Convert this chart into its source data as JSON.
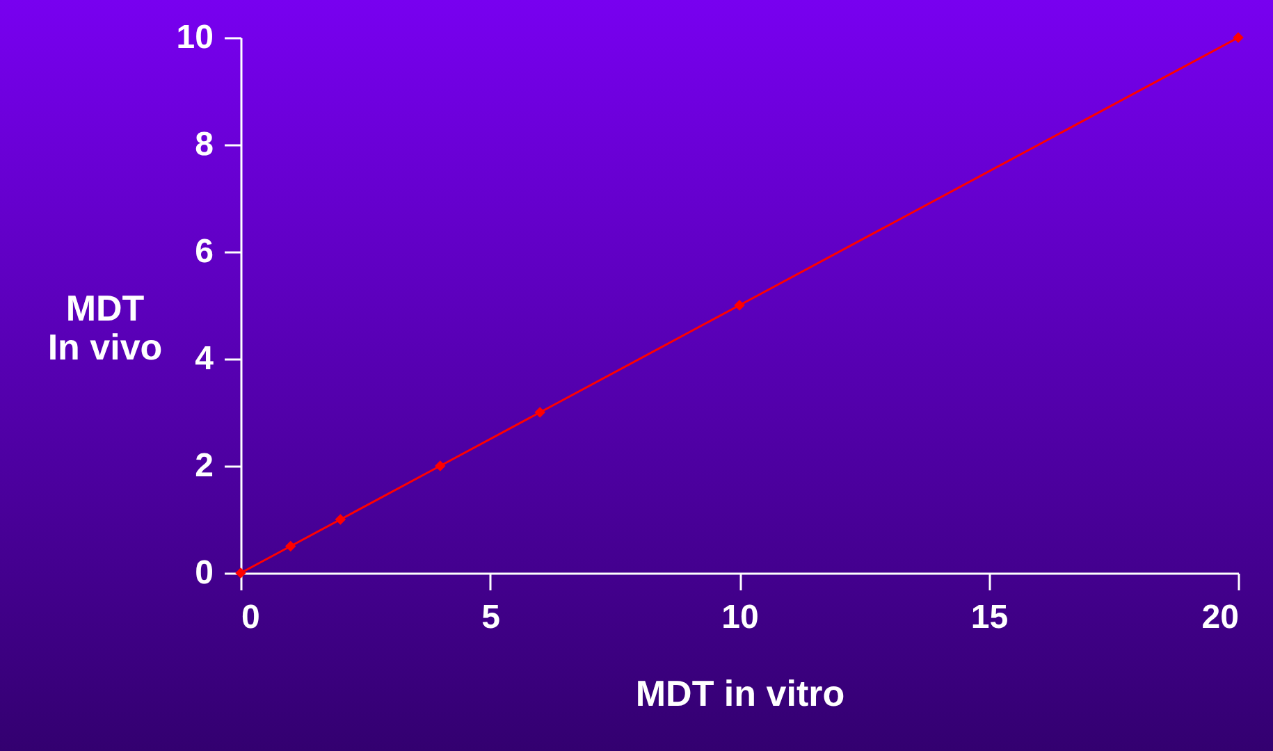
{
  "chart_data": {
    "type": "line",
    "xlabel": "MDT in vitro",
    "ylabel": "MDT\nIn vivo",
    "x": [
      0,
      1,
      2,
      4,
      6,
      10,
      20
    ],
    "series": [
      {
        "color": "#ff0000",
        "values": [
          0,
          0.5,
          1,
          2,
          3,
          5,
          10
        ]
      }
    ],
    "xlim": [
      0,
      20
    ],
    "xticks": [
      0,
      5,
      10,
      15,
      20
    ],
    "ylim": [
      0,
      10
    ],
    "yticks": [
      0,
      2,
      4,
      6,
      8,
      10
    ],
    "marker": "diamond",
    "line_style": "solid",
    "grid": false,
    "legend": false
  }
}
